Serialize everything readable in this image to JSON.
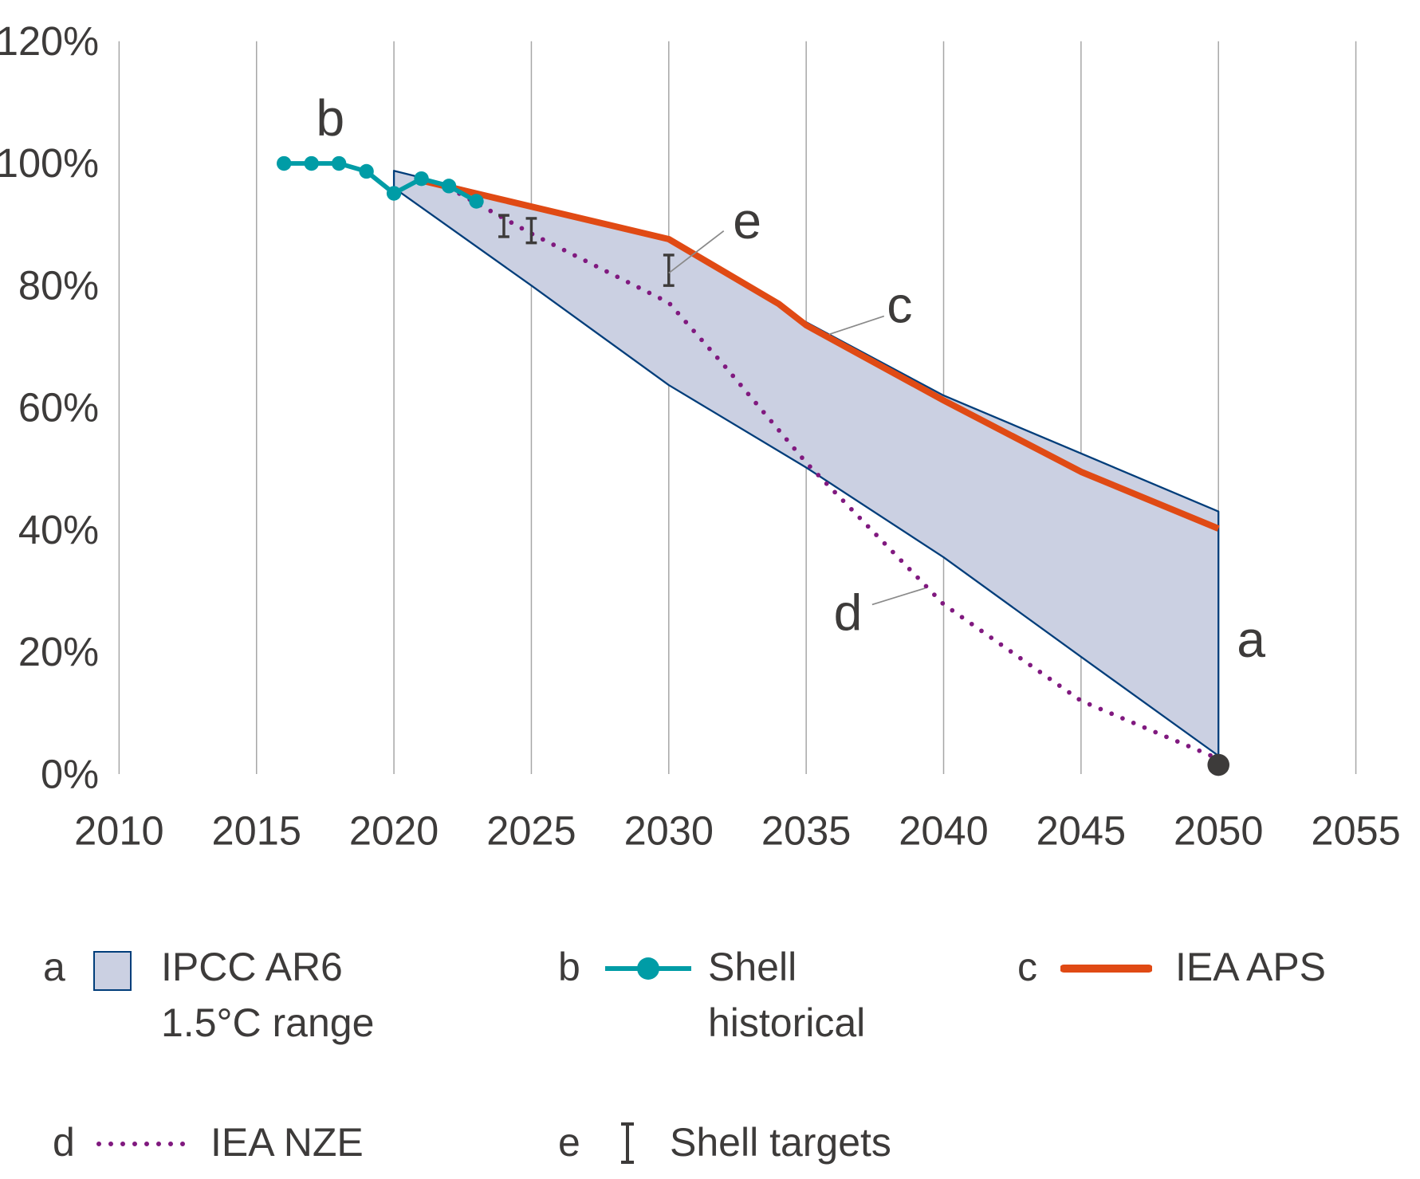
{
  "chart_data": {
    "type": "line",
    "title": "",
    "xlabel": "",
    "ylabel": "",
    "xlim": [
      2010,
      2055
    ],
    "ylim": [
      0,
      120
    ],
    "x_ticks": [
      "2010",
      "2015",
      "2020",
      "2025",
      "2030",
      "2035",
      "2040",
      "2045",
      "2050",
      "2055"
    ],
    "y_ticks": [
      "0%",
      "20%",
      "40%",
      "60%",
      "80%",
      "100%",
      "120%"
    ],
    "grid": "vertical",
    "series": [
      {
        "key": "a",
        "name": "IPCC AR6 1.5°C range",
        "type": "area",
        "upper": {
          "x": [
            2020,
            2030,
            2035,
            2040,
            2045,
            2050
          ],
          "y": [
            98.8,
            87.5,
            74,
            62,
            52.5,
            43
          ]
        },
        "lower": {
          "x": [
            2020,
            2025,
            2030,
            2035,
            2040,
            2045,
            2050
          ],
          "y": [
            96,
            80,
            63.7,
            50.2,
            35.5,
            19.2,
            3
          ]
        }
      },
      {
        "key": "b",
        "name": "Shell historical",
        "type": "line-markers",
        "x": [
          2016,
          2017,
          2018,
          2019,
          2020,
          2021,
          2022,
          2023
        ],
        "y": [
          100,
          100,
          100,
          98.7,
          95.1,
          97.5,
          96.3,
          93.8
        ]
      },
      {
        "key": "c",
        "name": "IEA APS",
        "type": "line",
        "x": [
          2021,
          2030,
          2034,
          2035,
          2040,
          2045,
          2050
        ],
        "y": [
          97.2,
          87.6,
          77,
          73.5,
          61.2,
          49.5,
          40.2
        ]
      },
      {
        "key": "d",
        "name": "IEA NZE",
        "type": "dotted",
        "x": [
          2022,
          2023,
          2025,
          2030,
          2032,
          2035,
          2040,
          2045,
          2050
        ],
        "y": [
          96,
          93.5,
          88.5,
          77.2,
          67,
          51,
          27.8,
          12,
          2.5
        ]
      },
      {
        "key": "e",
        "name": "Shell targets",
        "type": "range",
        "x": [
          2024,
          2025,
          2030
        ],
        "low": [
          88,
          87,
          80
        ],
        "high": [
          91.5,
          91,
          85
        ]
      }
    ],
    "endpoint": {
      "x": 2050,
      "y": 1.5
    },
    "legend": "bottom",
    "legend_labels": {
      "a_line1": "IPCC AR6",
      "a_line2": "1.5°C range",
      "b_line1": "Shell",
      "b_line2": "historical",
      "c": "IEA APS",
      "d": "IEA NZE",
      "e": "Shell targets"
    },
    "keys": {
      "a": "a",
      "b": "b",
      "c": "c",
      "d": "d",
      "e": "e"
    },
    "colors": {
      "range_fill": "#cbd0e2",
      "range_line": "#003d7a",
      "historical": "#009ca6",
      "aps": "#e04a14",
      "nze": "#80197f",
      "targets": "#3d3b3a",
      "grid": "#a6a6a6"
    }
  }
}
